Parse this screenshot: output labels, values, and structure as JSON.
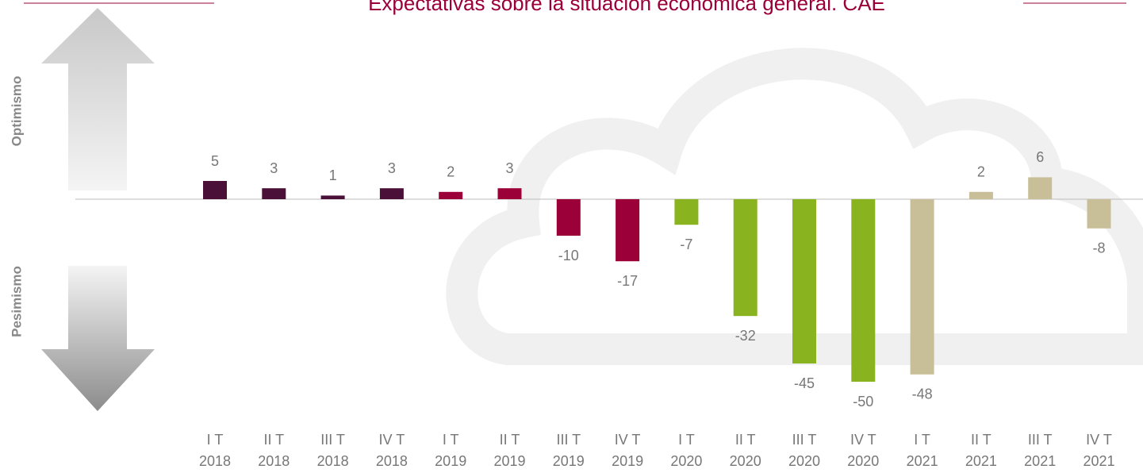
{
  "chart_data": {
    "type": "bar",
    "title": "Expectativas sobre la situación económica general. CAE",
    "side_labels": [
      "Optimismo",
      "Pesimismo"
    ],
    "categories": [
      [
        "I T",
        "2018"
      ],
      [
        "II T",
        "2018"
      ],
      [
        "III T",
        "2018"
      ],
      [
        "IV T",
        "2018"
      ],
      [
        "I T",
        "2019"
      ],
      [
        "II T",
        "2019"
      ],
      [
        "III T",
        "2019"
      ],
      [
        "IV T",
        "2019"
      ],
      [
        "I T",
        "2020"
      ],
      [
        "II T",
        "2020"
      ],
      [
        "III T",
        "2020"
      ],
      [
        "IV T",
        "2020"
      ],
      [
        "I T",
        "2021"
      ],
      [
        "II T",
        "2021"
      ],
      [
        "III T",
        "2021"
      ],
      [
        "IV T",
        "2021"
      ]
    ],
    "values": [
      5,
      3,
      1,
      3,
      2,
      3,
      -10,
      -17,
      -7,
      -32,
      -45,
      -50,
      -48,
      2,
      6,
      -8
    ],
    "colors": [
      "#4a1038",
      "#4a1038",
      "#4a1038",
      "#4a1038",
      "#9b0039",
      "#9b0039",
      "#9b0039",
      "#9b0039",
      "#8ab41f",
      "#8ab41f",
      "#8ab41f",
      "#8ab41f",
      "#c8bf98",
      "#c8bf98",
      "#c8bf98",
      "#c8bf98"
    ]
  }
}
